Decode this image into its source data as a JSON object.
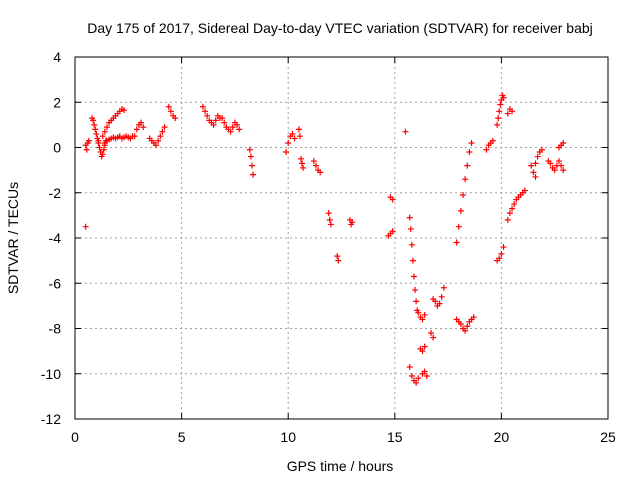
{
  "chart_data": {
    "type": "scatter",
    "title": "Day 175 of 2017, Sidereal Day-to-day VTEC variation (SDTVAR) for receiver babj",
    "xlabel": "GPS time / hours",
    "ylabel": "SDTVAR / TECUs",
    "xlim": [
      0,
      25
    ],
    "ylim": [
      -12,
      4
    ],
    "xticks": [
      0,
      5,
      10,
      15,
      20,
      25
    ],
    "yticks": [
      -12,
      -10,
      -8,
      -6,
      -4,
      -2,
      0,
      2,
      4
    ],
    "grid": true,
    "marker": "+",
    "color": "#ff0000",
    "segments": [
      {
        "x": [
          0.5,
          0.55,
          0.6,
          0.65
        ],
        "y": [
          0.1,
          -0.1,
          0.2,
          0.3
        ]
      },
      {
        "x": [
          0.5
        ],
        "y": [
          -3.5
        ]
      },
      {
        "x": [
          0.8,
          0.85,
          0.9,
          0.95,
          1.0,
          1.05,
          1.1
        ],
        "y": [
          1.3,
          1.2,
          1.0,
          0.8,
          0.6,
          0.4,
          0.2
        ]
      },
      {
        "x": [
          1.1,
          1.15,
          1.2,
          1.25,
          1.3,
          1.35,
          1.4,
          1.45
        ],
        "y": [
          0.3,
          0.0,
          -0.2,
          -0.4,
          -0.3,
          -0.1,
          0.1,
          0.3
        ]
      },
      {
        "x": [
          1.3,
          1.4,
          1.5,
          1.6,
          1.7,
          1.8,
          1.9,
          2.0,
          2.1,
          2.2,
          2.3
        ],
        "y": [
          0.5,
          0.7,
          0.9,
          1.1,
          1.2,
          1.3,
          1.4,
          1.5,
          1.6,
          1.7,
          1.65
        ]
      },
      {
        "x": [
          1.4,
          1.5,
          1.6,
          1.7,
          1.8,
          1.9,
          2.0,
          2.1,
          2.2,
          2.3,
          2.4,
          2.5,
          2.6,
          2.7
        ],
        "y": [
          0.2,
          0.3,
          0.35,
          0.4,
          0.45,
          0.4,
          0.45,
          0.5,
          0.4,
          0.45,
          0.5,
          0.45,
          0.4,
          0.5
        ]
      },
      {
        "x": [
          2.8,
          2.9,
          3.0,
          3.1,
          3.2
        ],
        "y": [
          0.5,
          0.8,
          1.0,
          1.1,
          0.9
        ]
      },
      {
        "x": [
          3.5,
          3.6,
          3.7,
          3.8,
          3.9,
          4.0,
          4.1,
          4.2
        ],
        "y": [
          0.4,
          0.3,
          0.2,
          0.1,
          0.3,
          0.5,
          0.7,
          0.9
        ]
      },
      {
        "x": [
          4.4,
          4.5,
          4.6,
          4.7
        ],
        "y": [
          1.8,
          1.6,
          1.4,
          1.3
        ]
      },
      {
        "x": [
          6.0,
          6.1,
          6.2,
          6.3,
          6.4,
          6.5,
          6.6,
          6.7,
          6.8
        ],
        "y": [
          1.8,
          1.6,
          1.4,
          1.2,
          1.1,
          1.0,
          1.2,
          1.4,
          1.3
        ]
      },
      {
        "x": [
          6.9,
          7.0,
          7.1,
          7.2,
          7.3,
          7.4,
          7.5,
          7.6,
          7.7
        ],
        "y": [
          1.3,
          1.1,
          0.9,
          0.8,
          0.7,
          0.9,
          1.1,
          1.0,
          0.8
        ]
      },
      {
        "x": [
          8.2,
          8.25,
          8.3,
          8.35
        ],
        "y": [
          -0.1,
          -0.4,
          -0.8,
          -1.2
        ]
      },
      {
        "x": [
          9.9,
          10.0,
          10.1,
          10.2,
          10.3
        ],
        "y": [
          -0.2,
          0.2,
          0.5,
          0.6,
          0.4
        ]
      },
      {
        "x": [
          10.5,
          10.55,
          10.6,
          10.65,
          10.7
        ],
        "y": [
          0.8,
          0.5,
          -0.5,
          -0.7,
          -0.9
        ]
      },
      {
        "x": [
          11.2,
          11.3,
          11.4,
          11.5
        ],
        "y": [
          -0.6,
          -0.8,
          -1.0,
          -1.1
        ]
      },
      {
        "x": [
          11.9,
          11.95,
          12.0
        ],
        "y": [
          -2.9,
          -3.2,
          -3.4
        ]
      },
      {
        "x": [
          12.3,
          12.35
        ],
        "y": [
          -4.8,
          -5.0
        ]
      },
      {
        "x": [
          12.9,
          12.95,
          13.0
        ],
        "y": [
          -3.2,
          -3.4,
          -3.3
        ]
      },
      {
        "x": [
          14.7,
          14.8,
          14.9
        ],
        "y": [
          -3.9,
          -3.8,
          -3.7
        ]
      },
      {
        "x": [
          14.8,
          14.9
        ],
        "y": [
          -2.2,
          -2.3
        ]
      },
      {
        "x": [
          15.5
        ],
        "y": [
          0.7
        ]
      },
      {
        "x": [
          15.7,
          15.75,
          15.8,
          15.85,
          15.9,
          15.95,
          16.0,
          16.05
        ],
        "y": [
          -3.1,
          -3.6,
          -4.3,
          -5.0,
          -5.7,
          -6.3,
          -6.8,
          -7.2
        ]
      },
      {
        "x": [
          15.7,
          15.8,
          15.9,
          16.0,
          16.1
        ],
        "y": [
          -9.7,
          -10.1,
          -10.3,
          -10.4,
          -10.2
        ]
      },
      {
        "x": [
          16.1,
          16.2,
          16.3,
          16.4
        ],
        "y": [
          -7.3,
          -7.5,
          -7.6,
          -7.4
        ]
      },
      {
        "x": [
          16.2,
          16.3,
          16.4
        ],
        "y": [
          -8.9,
          -9.0,
          -8.8
        ]
      },
      {
        "x": [
          16.3,
          16.4,
          16.5
        ],
        "y": [
          -10.0,
          -9.9,
          -10.1
        ]
      },
      {
        "x": [
          16.7,
          16.8
        ],
        "y": [
          -8.2,
          -8.4
        ]
      },
      {
        "x": [
          16.8,
          16.9,
          17.0,
          17.1,
          17.2,
          17.3
        ],
        "y": [
          -6.7,
          -6.8,
          -7.0,
          -6.9,
          -6.6,
          -6.2
        ]
      },
      {
        "x": [
          17.9,
          18.0,
          18.1,
          18.2,
          18.3,
          18.4,
          18.5,
          18.6
        ],
        "y": [
          -4.2,
          -3.5,
          -2.8,
          -2.1,
          -1.4,
          -0.8,
          -0.2,
          0.2
        ]
      },
      {
        "x": [
          17.9,
          18.0,
          18.1,
          18.2,
          18.3,
          18.4,
          18.5,
          18.6,
          18.7
        ],
        "y": [
          -7.6,
          -7.7,
          -7.8,
          -8.0,
          -8.1,
          -7.9,
          -7.7,
          -7.6,
          -7.5
        ]
      },
      {
        "x": [
          19.3,
          19.4,
          19.5,
          19.6
        ],
        "y": [
          -0.1,
          0.1,
          0.2,
          0.3
        ]
      },
      {
        "x": [
          19.8,
          19.9,
          20.0,
          20.1
        ],
        "y": [
          -5.0,
          -4.9,
          -4.7,
          -4.4
        ]
      },
      {
        "x": [
          19.8,
          19.85,
          19.9,
          19.95,
          20.0,
          20.05,
          20.1
        ],
        "y": [
          1.0,
          1.3,
          1.6,
          1.9,
          2.1,
          2.3,
          2.2
        ]
      },
      {
        "x": [
          20.3,
          20.4,
          20.5
        ],
        "y": [
          1.5,
          1.7,
          1.6
        ]
      },
      {
        "x": [
          20.3,
          20.4,
          20.5,
          20.6,
          20.7,
          20.8,
          20.9,
          21.0,
          21.1
        ],
        "y": [
          -3.2,
          -2.9,
          -2.7,
          -2.5,
          -2.3,
          -2.2,
          -2.1,
          -2.0,
          -1.9
        ]
      },
      {
        "x": [
          21.4,
          21.5,
          21.6
        ],
        "y": [
          -0.8,
          -1.1,
          -1.3
        ]
      },
      {
        "x": [
          21.6,
          21.7,
          21.8,
          21.9
        ],
        "y": [
          -0.7,
          -0.4,
          -0.2,
          -0.1
        ]
      },
      {
        "x": [
          22.2,
          22.3,
          22.4,
          22.5,
          22.6
        ],
        "y": [
          -0.6,
          -0.7,
          -0.9,
          -1.0,
          -0.8
        ]
      },
      {
        "x": [
          22.7,
          22.8,
          22.9
        ],
        "y": [
          -0.6,
          -0.8,
          -1.0
        ]
      },
      {
        "x": [
          22.7,
          22.8,
          22.9
        ],
        "y": [
          0.0,
          0.1,
          0.2
        ]
      }
    ]
  }
}
